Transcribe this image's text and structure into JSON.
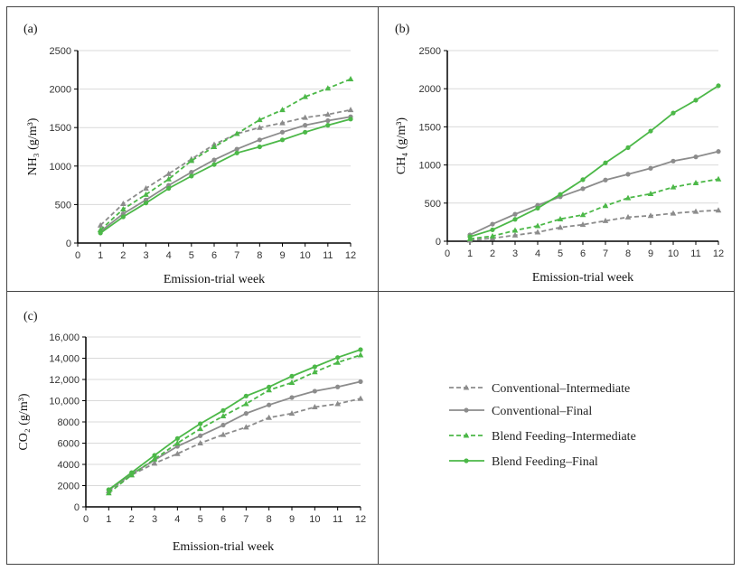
{
  "series_styles": [
    {
      "name": "Conventional–Intermediate",
      "color": "#8c8c8c",
      "dashed": true,
      "marker": "triangle"
    },
    {
      "name": "Conventional–Final",
      "color": "#8c8c8c",
      "dashed": false,
      "marker": "circle"
    },
    {
      "name": "Blend Feeding–Intermediate",
      "color": "#4cb848",
      "dashed": true,
      "marker": "triangle"
    },
    {
      "name": "Blend Feeding–Final",
      "color": "#4cb848",
      "dashed": false,
      "marker": "circle"
    }
  ],
  "legend": {
    "placement": "bottom-right panel",
    "entries": [
      "Conventional–Intermediate",
      "Conventional–Final",
      "Blend Feeding–Intermediate",
      "Blend Feeding–Final"
    ]
  },
  "chart_data": [
    {
      "type": "line",
      "panel_label": "(a)",
      "xlabel": "Emission-trial week",
      "ylabel": "NH₃ (g/m³)",
      "xlim": [
        0,
        12
      ],
      "ylim": [
        0,
        2500
      ],
      "grid": true,
      "x": [
        1,
        2,
        3,
        4,
        5,
        6,
        7,
        8,
        9,
        10,
        11,
        12
      ],
      "xticks": [
        "0",
        "1",
        "2",
        "3",
        "4",
        "5",
        "6",
        "7",
        "8",
        "9",
        "10",
        "11",
        "12"
      ],
      "yticks": [
        "0",
        "500",
        "1000",
        "1500",
        "2000",
        "2500"
      ],
      "series": [
        {
          "name": "Conventional–Intermediate",
          "values": [
            230,
            510,
            710,
            900,
            1090,
            1280,
            1420,
            1500,
            1560,
            1630,
            1670,
            1730
          ]
        },
        {
          "name": "Conventional–Final",
          "values": [
            150,
            380,
            560,
            750,
            920,
            1080,
            1220,
            1340,
            1440,
            1530,
            1590,
            1640
          ]
        },
        {
          "name": "Blend Feeding–Intermediate",
          "values": [
            170,
            440,
            630,
            830,
            1070,
            1250,
            1420,
            1600,
            1730,
            1900,
            2010,
            2130
          ]
        },
        {
          "name": "Blend Feeding–Final",
          "values": [
            130,
            340,
            520,
            710,
            870,
            1020,
            1170,
            1250,
            1340,
            1440,
            1530,
            1610
          ]
        }
      ]
    },
    {
      "type": "line",
      "panel_label": "(b)",
      "xlabel": "Emission-trial week",
      "ylabel": "CH₄ (g/m³)",
      "xlim": [
        0,
        12
      ],
      "ylim": [
        0,
        2500
      ],
      "grid": true,
      "x": [
        1,
        2,
        3,
        4,
        5,
        6,
        7,
        8,
        9,
        10,
        11,
        12
      ],
      "xticks": [
        "0",
        "1",
        "2",
        "3",
        "4",
        "5",
        "6",
        "7",
        "8",
        "9",
        "10",
        "11",
        "12"
      ],
      "yticks": [
        "0",
        "500",
        "1000",
        "1500",
        "2000",
        "2500"
      ],
      "series": [
        {
          "name": "Conventional–Intermediate",
          "values": [
            12,
            39,
            79,
            118,
            181,
            217,
            268,
            315,
            335,
            366,
            390,
            406
          ]
        },
        {
          "name": "Conventional–Final",
          "values": [
            83,
            224,
            354,
            472,
            583,
            689,
            803,
            878,
            957,
            1051,
            1106,
            1177
          ]
        },
        {
          "name": "Blend Feeding–Intermediate",
          "values": [
            31,
            67,
            142,
            201,
            291,
            346,
            465,
            567,
            622,
            709,
            764,
            815
          ]
        },
        {
          "name": "Blend Feeding–Final",
          "values": [
            59,
            150,
            287,
            433,
            614,
            807,
            1028,
            1228,
            1445,
            1681,
            1850,
            2039
          ]
        }
      ]
    },
    {
      "type": "line",
      "panel_label": "(c)",
      "xlabel": "Emission-trial week",
      "ylabel": "CO₂ (g/m³)",
      "xlim": [
        0,
        12
      ],
      "ylim": [
        0,
        16000
      ],
      "grid": true,
      "x": [
        1,
        2,
        3,
        4,
        5,
        6,
        7,
        8,
        9,
        10,
        11,
        12
      ],
      "xticks": [
        "0",
        "1",
        "2",
        "3",
        "4",
        "5",
        "6",
        "7",
        "8",
        "9",
        "10",
        "11",
        "12"
      ],
      "yticks": [
        "0",
        "2000",
        "4000",
        "6000",
        "8000",
        "10,000",
        "12,000",
        "14,000",
        "16,000"
      ],
      "series": [
        {
          "name": "Conventional–Intermediate",
          "values": [
            1500,
            3000,
            4100,
            5000,
            6000,
            6800,
            7500,
            8400,
            8800,
            9400,
            9700,
            10200
          ]
        },
        {
          "name": "Conventional–Final",
          "values": [
            1600,
            3100,
            4400,
            5700,
            6700,
            7700,
            8800,
            9600,
            10300,
            10900,
            11300,
            11800
          ]
        },
        {
          "name": "Blend Feeding–Intermediate",
          "values": [
            1300,
            3000,
            4500,
            6000,
            7350,
            8550,
            9700,
            11000,
            11700,
            12700,
            13600,
            14300
          ]
        },
        {
          "name": "Blend Feeding–Final",
          "values": [
            1620,
            3230,
            4850,
            6440,
            7830,
            9080,
            10440,
            11290,
            12310,
            13190,
            14070,
            14810
          ]
        }
      ]
    }
  ]
}
